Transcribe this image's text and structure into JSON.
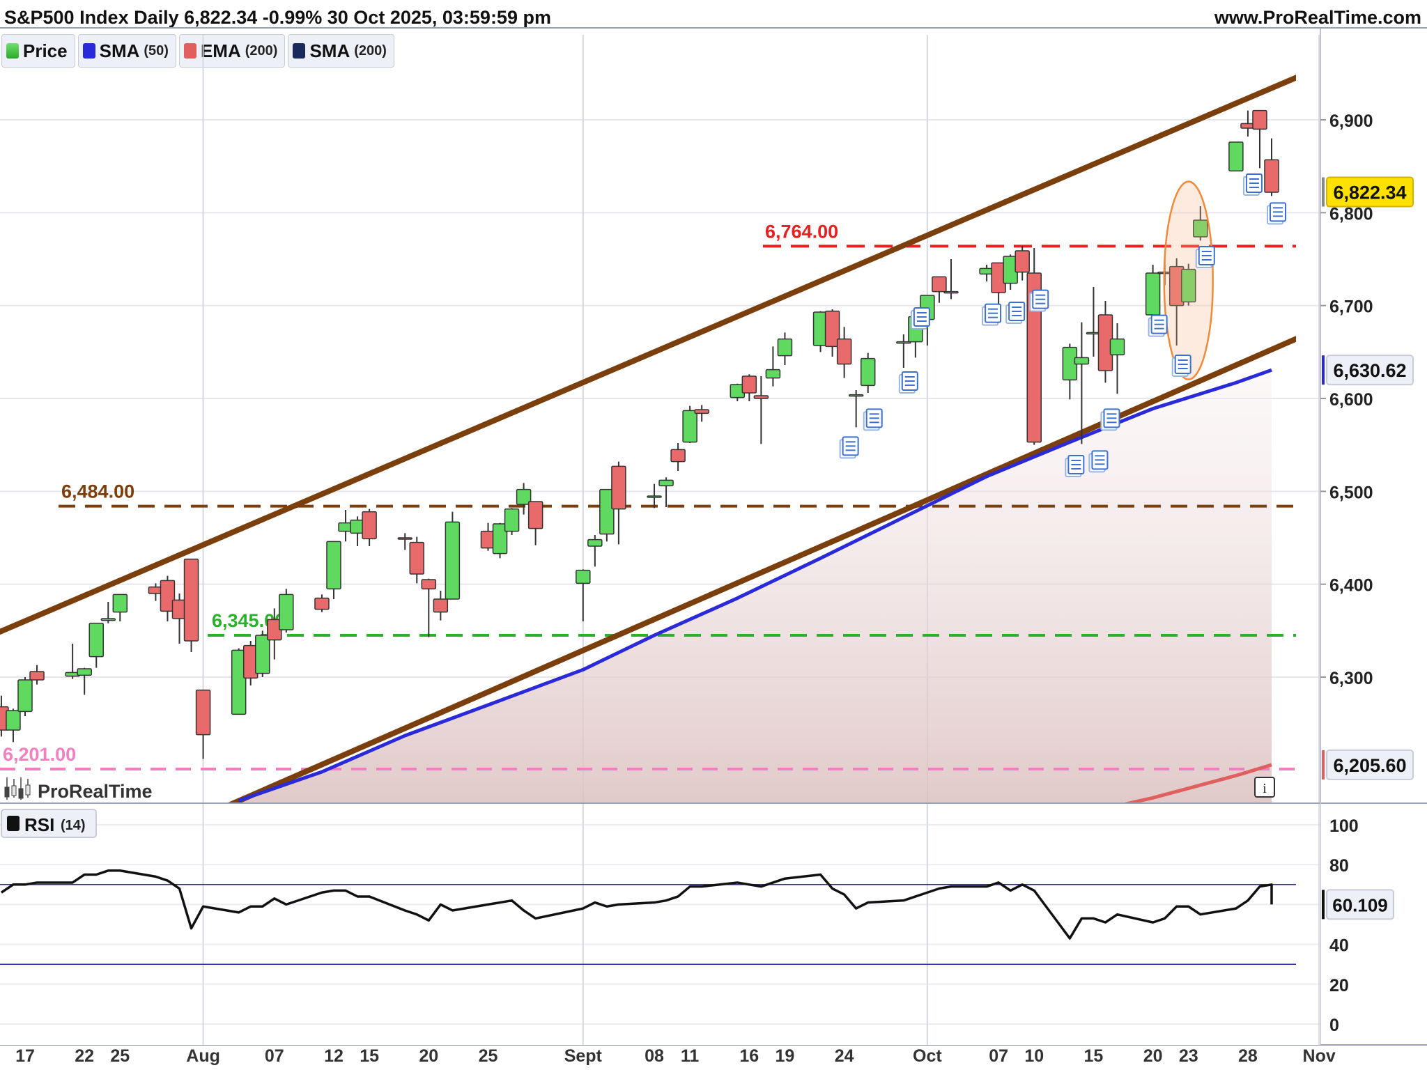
{
  "header": {
    "title": "S&P500 Index Daily 6,822.34 -0.99% 30 Oct 2025, 03:59:59 pm",
    "site": "www.ProRealTime.com"
  },
  "legend": [
    {
      "label": "Price",
      "period": "",
      "color": "#3cc33c"
    },
    {
      "label": "SMA",
      "period": "(50)",
      "color": "#2a2ad8"
    },
    {
      "label": "EMA",
      "period": "(200)",
      "color": "#e06060"
    },
    {
      "label": "SMA",
      "period": "(200)",
      "color": "#1a2a5a"
    }
  ],
  "watermark": "ProRealTime",
  "info_button": "i",
  "rsi_label": "RSI",
  "rsi_period": "(14)",
  "chart_data": [
    {
      "type": "candlestick",
      "title": "S&P500 Index Daily",
      "ylim": [
        6150,
        6980
      ],
      "y_ticks": [
        6300,
        6400,
        6500,
        6600,
        6700,
        6800,
        6900
      ],
      "y_tick_labels": [
        "6,300",
        "6,400",
        "6,500",
        "6,600",
        "6,700",
        "6,800",
        "6,900"
      ],
      "x_tick_labels": [
        {
          "label": "17",
          "date": "2025-07-17"
        },
        {
          "label": "22",
          "date": "2025-07-22"
        },
        {
          "label": "25",
          "date": "2025-07-25"
        },
        {
          "label": "Aug",
          "date": "2025-08-01"
        },
        {
          "label": "07",
          "date": "2025-08-07"
        },
        {
          "label": "12",
          "date": "2025-08-12"
        },
        {
          "label": "15",
          "date": "2025-08-15"
        },
        {
          "label": "20",
          "date": "2025-08-20"
        },
        {
          "label": "25",
          "date": "2025-08-25"
        },
        {
          "label": "Sept",
          "date": "2025-09-02"
        },
        {
          "label": "08",
          "date": "2025-09-08"
        },
        {
          "label": "11",
          "date": "2025-09-11"
        },
        {
          "label": "16",
          "date": "2025-09-16"
        },
        {
          "label": "19",
          "date": "2025-09-19"
        },
        {
          "label": "24",
          "date": "2025-09-24"
        },
        {
          "label": "Oct",
          "date": "2025-10-01"
        },
        {
          "label": "07",
          "date": "2025-10-07"
        },
        {
          "label": "10",
          "date": "2025-10-10"
        },
        {
          "label": "15",
          "date": "2025-10-15"
        },
        {
          "label": "20",
          "date": "2025-10-20"
        },
        {
          "label": "23",
          "date": "2025-10-23"
        },
        {
          "label": "28",
          "date": "2025-10-28"
        },
        {
          "label": "Nov",
          "date": "2025-11-03"
        }
      ],
      "candles": [
        {
          "date": "2025-07-15",
          "o": 6268,
          "h": 6280,
          "l": 6236,
          "c": 6243
        },
        {
          "date": "2025-07-16",
          "o": 6243,
          "h": 6266,
          "l": 6230,
          "c": 6264
        },
        {
          "date": "2025-07-17",
          "o": 6263,
          "h": 6300,
          "l": 6258,
          "c": 6297
        },
        {
          "date": "2025-07-18",
          "o": 6306,
          "h": 6313,
          "l": 6292,
          "c": 6297
        },
        {
          "date": "2025-07-21",
          "o": 6301,
          "h": 6336,
          "l": 6298,
          "c": 6305
        },
        {
          "date": "2025-07-22",
          "o": 6302,
          "h": 6310,
          "l": 6281,
          "c": 6309
        },
        {
          "date": "2025-07-23",
          "o": 6322,
          "h": 6358,
          "l": 6310,
          "c": 6358
        },
        {
          "date": "2025-07-24",
          "o": 6361,
          "h": 6381,
          "l": 6358,
          "c": 6363
        },
        {
          "date": "2025-07-25",
          "o": 6370,
          "h": 6389,
          "l": 6360,
          "c": 6389
        },
        {
          "date": "2025-07-28",
          "o": 6397,
          "h": 6401,
          "l": 6382,
          "c": 6390
        },
        {
          "date": "2025-07-29",
          "o": 6404,
          "h": 6409,
          "l": 6360,
          "c": 6371
        },
        {
          "date": "2025-07-30",
          "o": 6383,
          "h": 6390,
          "l": 6336,
          "c": 6363
        },
        {
          "date": "2025-07-31",
          "o": 6427,
          "h": 6427,
          "l": 6327,
          "c": 6339
        },
        {
          "date": "2025-08-01",
          "o": 6286,
          "h": 6286,
          "l": 6212,
          "c": 6238
        },
        {
          "date": "2025-08-04",
          "o": 6260,
          "h": 6331,
          "l": 6260,
          "c": 6329
        },
        {
          "date": "2025-08-05",
          "o": 6334,
          "h": 6339,
          "l": 6291,
          "c": 6299
        },
        {
          "date": "2025-08-06",
          "o": 6304,
          "h": 6350,
          "l": 6300,
          "c": 6345
        },
        {
          "date": "2025-08-07",
          "o": 6362,
          "h": 6374,
          "l": 6319,
          "c": 6340
        },
        {
          "date": "2025-08-08",
          "o": 6351,
          "h": 6395,
          "l": 6348,
          "c": 6389
        },
        {
          "date": "2025-08-11",
          "o": 6385,
          "h": 6389,
          "l": 6370,
          "c": 6373
        },
        {
          "date": "2025-08-12",
          "o": 6395,
          "h": 6446,
          "l": 6384,
          "c": 6446
        },
        {
          "date": "2025-08-13",
          "o": 6457,
          "h": 6480,
          "l": 6446,
          "c": 6466
        },
        {
          "date": "2025-08-14",
          "o": 6455,
          "h": 6473,
          "l": 6441,
          "c": 6469
        },
        {
          "date": "2025-08-15",
          "o": 6478,
          "h": 6481,
          "l": 6441,
          "c": 6449
        },
        {
          "date": "2025-08-18",
          "o": 6450,
          "h": 6455,
          "l": 6437,
          "c": 6449
        },
        {
          "date": "2025-08-19",
          "o": 6445,
          "h": 6451,
          "l": 6401,
          "c": 6411
        },
        {
          "date": "2025-08-20",
          "o": 6405,
          "h": 6406,
          "l": 6343,
          "c": 6395
        },
        {
          "date": "2025-08-21",
          "o": 6384,
          "h": 6393,
          "l": 6361,
          "c": 6370
        },
        {
          "date": "2025-08-22",
          "o": 6384,
          "h": 6478,
          "l": 6384,
          "c": 6467
        },
        {
          "date": "2025-08-25",
          "o": 6457,
          "h": 6466,
          "l": 6436,
          "c": 6439
        },
        {
          "date": "2025-08-26",
          "o": 6433,
          "h": 6466,
          "l": 6428,
          "c": 6465
        },
        {
          "date": "2025-08-27",
          "o": 6457,
          "h": 6482,
          "l": 6453,
          "c": 6481
        },
        {
          "date": "2025-08-28",
          "o": 6486,
          "h": 6509,
          "l": 6475,
          "c": 6502
        },
        {
          "date": "2025-08-29",
          "o": 6489,
          "h": 6489,
          "l": 6442,
          "c": 6460
        },
        {
          "date": "2025-09-02",
          "o": 6401,
          "h": 6416,
          "l": 6360,
          "c": 6415
        },
        {
          "date": "2025-09-03",
          "o": 6441,
          "h": 6453,
          "l": 6419,
          "c": 6448
        },
        {
          "date": "2025-09-04",
          "o": 6454,
          "h": 6502,
          "l": 6446,
          "c": 6502
        },
        {
          "date": "2025-09-05",
          "o": 6527,
          "h": 6532,
          "l": 6443,
          "c": 6481
        },
        {
          "date": "2025-09-08",
          "o": 6494,
          "h": 6508,
          "l": 6482,
          "c": 6495
        },
        {
          "date": "2025-09-09",
          "o": 6506,
          "h": 6515,
          "l": 6483,
          "c": 6512
        },
        {
          "date": "2025-09-10",
          "o": 6545,
          "h": 6552,
          "l": 6522,
          "c": 6532
        },
        {
          "date": "2025-09-11",
          "o": 6553,
          "h": 6592,
          "l": 6552,
          "c": 6587
        },
        {
          "date": "2025-09-12",
          "o": 6588,
          "h": 6593,
          "l": 6575,
          "c": 6584
        },
        {
          "date": "2025-09-15",
          "o": 6601,
          "h": 6616,
          "l": 6597,
          "c": 6615
        },
        {
          "date": "2025-09-16",
          "o": 6624,
          "h": 6626,
          "l": 6597,
          "c": 6606
        },
        {
          "date": "2025-09-17",
          "o": 6603,
          "h": 6624,
          "l": 6551,
          "c": 6600
        },
        {
          "date": "2025-09-18",
          "o": 6622,
          "h": 6656,
          "l": 6613,
          "c": 6631
        },
        {
          "date": "2025-09-19",
          "o": 6646,
          "h": 6671,
          "l": 6636,
          "c": 6664
        },
        {
          "date": "2025-09-22",
          "o": 6657,
          "h": 6694,
          "l": 6650,
          "c": 6693
        },
        {
          "date": "2025-09-23",
          "o": 6694,
          "h": 6696,
          "l": 6645,
          "c": 6656
        },
        {
          "date": "2025-09-24",
          "o": 6664,
          "h": 6677,
          "l": 6622,
          "c": 6637
        },
        {
          "date": "2025-09-25",
          "o": 6604,
          "h": 6609,
          "l": 6569,
          "c": 6604
        },
        {
          "date": "2025-09-26",
          "o": 6614,
          "h": 6649,
          "l": 6606,
          "c": 6643
        },
        {
          "date": "2025-09-29",
          "o": 6661,
          "h": 6669,
          "l": 6633,
          "c": 6661
        },
        {
          "date": "2025-09-30",
          "o": 6661,
          "h": 6693,
          "l": 6644,
          "c": 6688
        },
        {
          "date": "2025-10-01",
          "o": 6685,
          "h": 6711,
          "l": 6657,
          "c": 6711
        },
        {
          "date": "2025-10-02",
          "o": 6731,
          "h": 6731,
          "l": 6703,
          "c": 6715
        },
        {
          "date": "2025-10-03",
          "o": 6715,
          "h": 6750,
          "l": 6707,
          "c": 6715
        },
        {
          "date": "2025-10-06",
          "o": 6734,
          "h": 6744,
          "l": 6726,
          "c": 6740
        },
        {
          "date": "2025-10-07",
          "o": 6746,
          "h": 6746,
          "l": 6698,
          "c": 6714
        },
        {
          "date": "2025-10-08",
          "o": 6724,
          "h": 6755,
          "l": 6717,
          "c": 6753
        },
        {
          "date": "2025-10-09",
          "o": 6759,
          "h": 6764,
          "l": 6727,
          "c": 6736
        },
        {
          "date": "2025-10-10",
          "o": 6735,
          "h": 6762,
          "l": 6550,
          "c": 6553
        },
        {
          "date": "2025-10-13",
          ",o": 0,
          "o": 6620,
          "h": 6659,
          "l": 6599,
          "c": 6655
        },
        {
          "date": "2025-10-14",
          "o": 6637,
          "h": 6682,
          "l": 6551,
          "c": 6644
        },
        {
          "date": "2025-10-15",
          "o": 6670,
          "h": 6720,
          "l": 6645,
          "c": 6671
        },
        {
          "date": "2025-10-16",
          "o": 6690,
          "h": 6705,
          "l": 6617,
          "c": 6630
        },
        {
          "date": "2025-10-17",
          "o": 6647,
          "h": 6681,
          "l": 6605,
          "c": 6664
        },
        {
          "date": "2025-10-20",
          "o": 6690,
          "h": 6744,
          "l": 6690,
          "c": 6735
        },
        {
          "date": "2025-10-21",
          "o": 6736,
          "h": 6752,
          "l": 6722,
          "c": 6735
        },
        {
          "date": "2025-10-22",
          "o": 6742,
          "h": 6751,
          "l": 6657,
          "c": 6700
        },
        {
          "date": "2025-10-23",
          "o": 6704,
          "h": 6745,
          "l": 6700,
          "c": 6739
        },
        {
          "date": "2025-10-24",
          "o": 6774,
          "h": 6807,
          "l": 6770,
          "c": 6792
        },
        {
          "date": "2025-10-27",
          "o": 6845,
          "h": 6876,
          "l": 6845,
          "c": 6876
        },
        {
          "date": "2025-10-28",
          "o": 6896,
          "h": 6910,
          "l": 6882,
          "c": 6891
        },
        {
          "date": "2025-10-29",
          "o": 6910,
          "h": 6910,
          "l": 6848,
          "c": 6890
        },
        {
          "date": "2025-10-30",
          "o": 6857,
          "h": 6880,
          "l": 6818,
          "c": 6822
        }
      ],
      "sma50_label": "6,630.62",
      "sma50": [
        {
          "date": "2025-08-04",
          "v": 6167
        },
        {
          "date": "2025-08-11",
          "v": 6198
        },
        {
          "date": "2025-08-18",
          "v": 6237
        },
        {
          "date": "2025-08-25",
          "v": 6270
        },
        {
          "date": "2025-09-02",
          "v": 6308
        },
        {
          "date": "2025-09-08",
          "v": 6345
        },
        {
          "date": "2025-09-15",
          "v": 6385
        },
        {
          "date": "2025-09-22",
          "v": 6428
        },
        {
          "date": "2025-09-29",
          "v": 6472
        },
        {
          "date": "2025-10-06",
          "v": 6516
        },
        {
          "date": "2025-10-13",
          "v": 6553
        },
        {
          "date": "2025-10-20",
          "v": 6589
        },
        {
          "date": "2025-10-27",
          "v": 6617
        },
        {
          "date": "2025-10-30",
          "v": 6630.62
        }
      ],
      "ema200_label": "6,205.60",
      "ema200": [
        {
          "date": "2025-10-13",
          "v": 6150
        },
        {
          "date": "2025-10-20",
          "v": 6170
        },
        {
          "date": "2025-10-27",
          "v": 6194
        },
        {
          "date": "2025-10-30",
          "v": 6205.6
        }
      ],
      "levels": [
        {
          "value": 6764.0,
          "label": "6,764.00",
          "color": "#e82020"
        },
        {
          "value": 6484.0,
          "label": "6,484.00",
          "color": "#7a3f0c"
        },
        {
          "value": 6345.0,
          "label": "6,345.00",
          "color": "#2bb02b"
        },
        {
          "value": 6201.0,
          "label": "6,201.00",
          "color": "#f080c0"
        }
      ],
      "channel": {
        "color": "#7a3f0c",
        "upper": [
          {
            "date": "2025-07-14",
            "v": 6344
          },
          {
            "date": "2025-11-03",
            "v": 6956
          }
        ],
        "lower": [
          {
            "date": "2025-08-01",
            "v": 6150
          },
          {
            "date": "2025-11-03",
            "v": 6675
          }
        ]
      },
      "last_price_label": "6,822.34",
      "last_price": 6822.34
    },
    {
      "type": "line",
      "title": "RSI (14)",
      "ylim": [
        0,
        100
      ],
      "y_ticks": [
        0,
        20,
        40,
        60,
        80,
        100
      ],
      "overbought": 70,
      "oversold": 30,
      "last_label": "60.109",
      "series": [
        {
          "name": "RSI",
          "values": [
            66,
            70,
            70,
            71,
            71,
            75,
            75,
            77,
            77,
            74,
            72,
            68,
            48,
            59,
            56,
            59,
            59,
            63,
            60,
            66,
            67,
            67,
            64,
            64,
            57,
            55,
            52,
            60,
            57,
            60,
            61,
            62,
            57,
            53,
            58,
            61,
            59,
            60,
            61,
            62,
            64,
            69,
            69,
            71,
            70,
            69,
            71,
            73,
            75,
            68,
            65,
            58,
            61,
            62,
            64,
            66,
            68,
            69,
            69,
            71,
            67,
            70,
            67,
            43,
            53,
            53,
            51,
            55,
            51,
            53,
            59,
            59,
            55,
            58,
            62,
            69,
            70,
            70,
            60
          ]
        }
      ]
    }
  ]
}
